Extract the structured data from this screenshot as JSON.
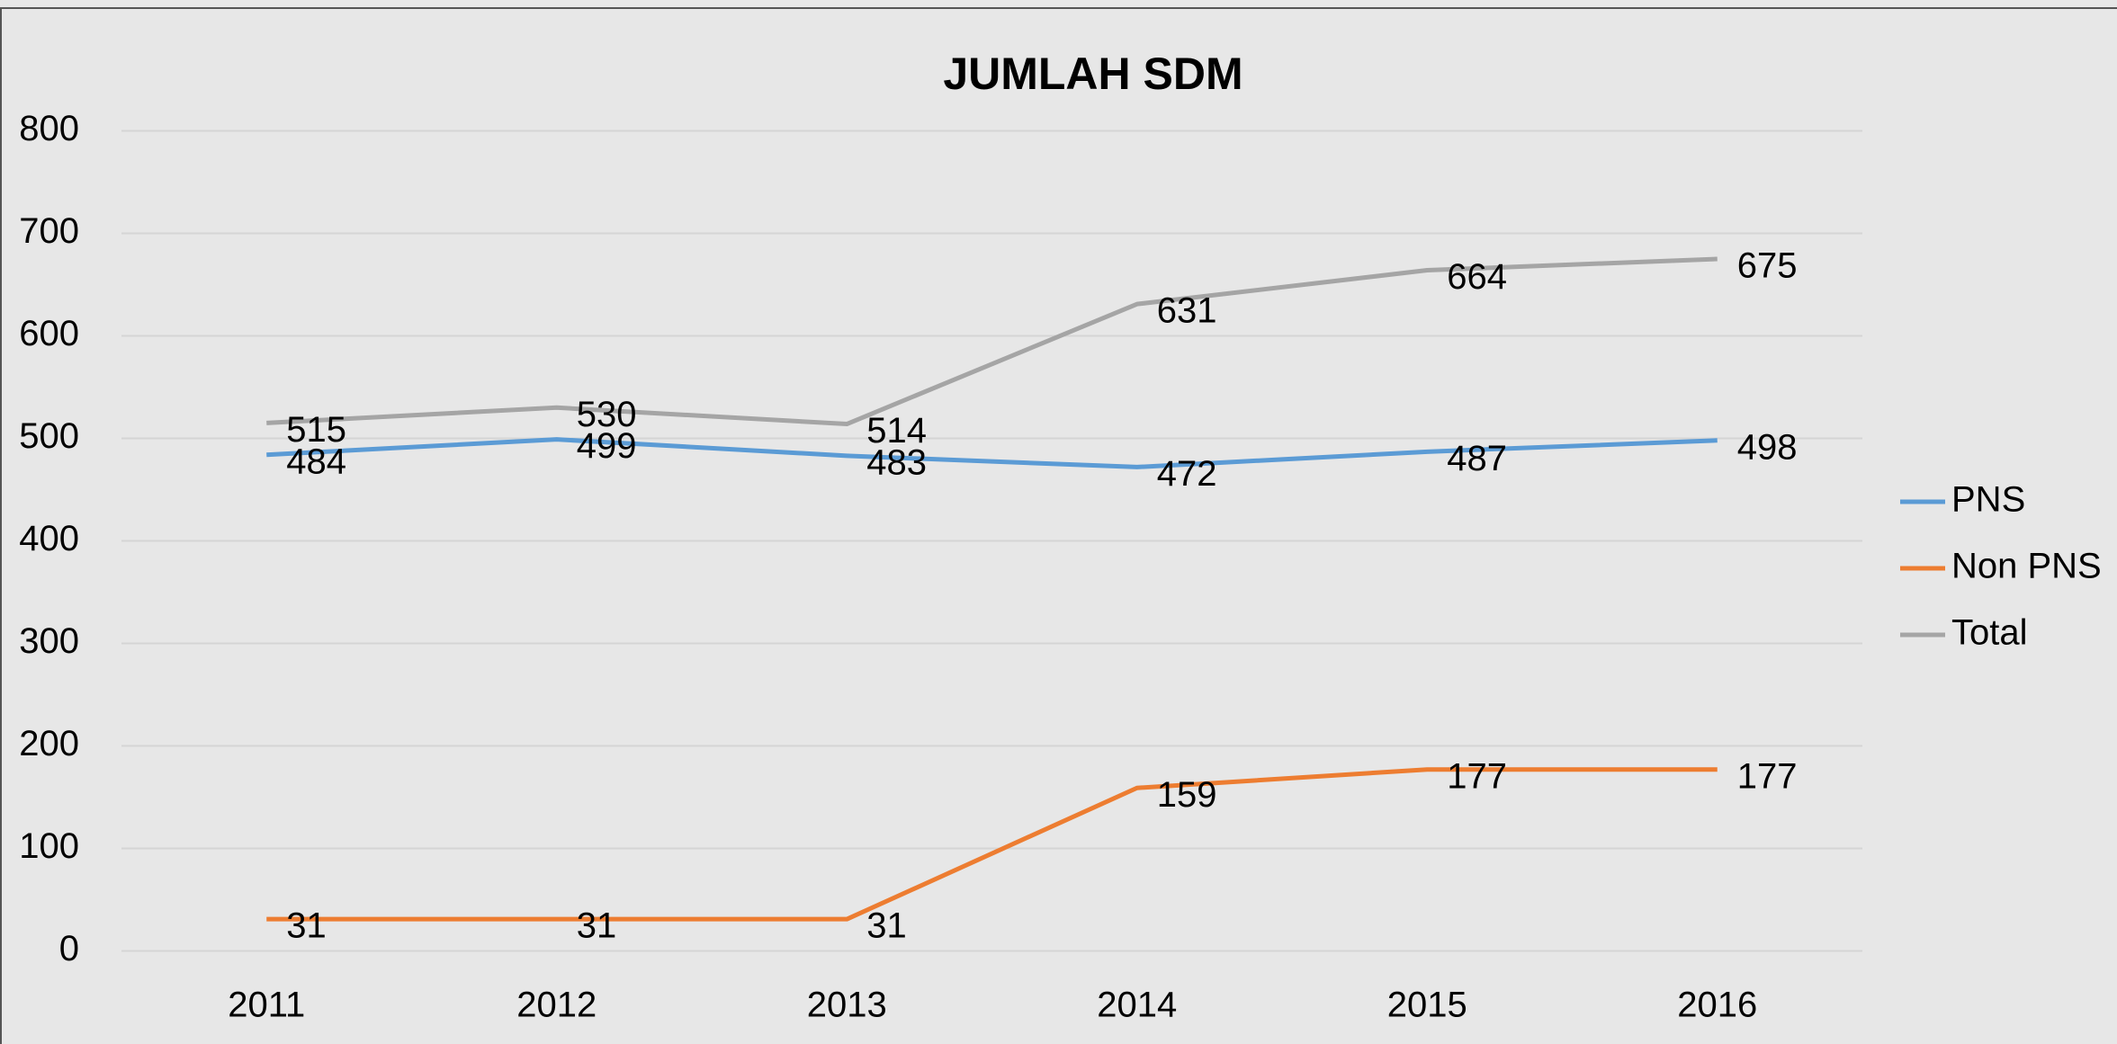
{
  "chart_data": {
    "type": "line",
    "title": "JUMLAH SDM",
    "categories": [
      "2011",
      "2012",
      "2013",
      "2014",
      "2015",
      "2016"
    ],
    "series": [
      {
        "name": "PNS",
        "color": "#5b9bd5",
        "values": [
          484,
          499,
          483,
          472,
          487,
          498
        ]
      },
      {
        "name": "Non PNS",
        "color": "#ed7d31",
        "values": [
          31,
          31,
          31,
          159,
          177,
          177
        ]
      },
      {
        "name": "Total",
        "color": "#a5a5a5",
        "values": [
          515,
          530,
          514,
          631,
          664,
          675
        ]
      }
    ],
    "ylim": [
      0,
      800
    ],
    "yticks": [
      0,
      100,
      200,
      300,
      400,
      500,
      600,
      700,
      800
    ],
    "grid": true,
    "legend": "right",
    "data_labels": true
  }
}
